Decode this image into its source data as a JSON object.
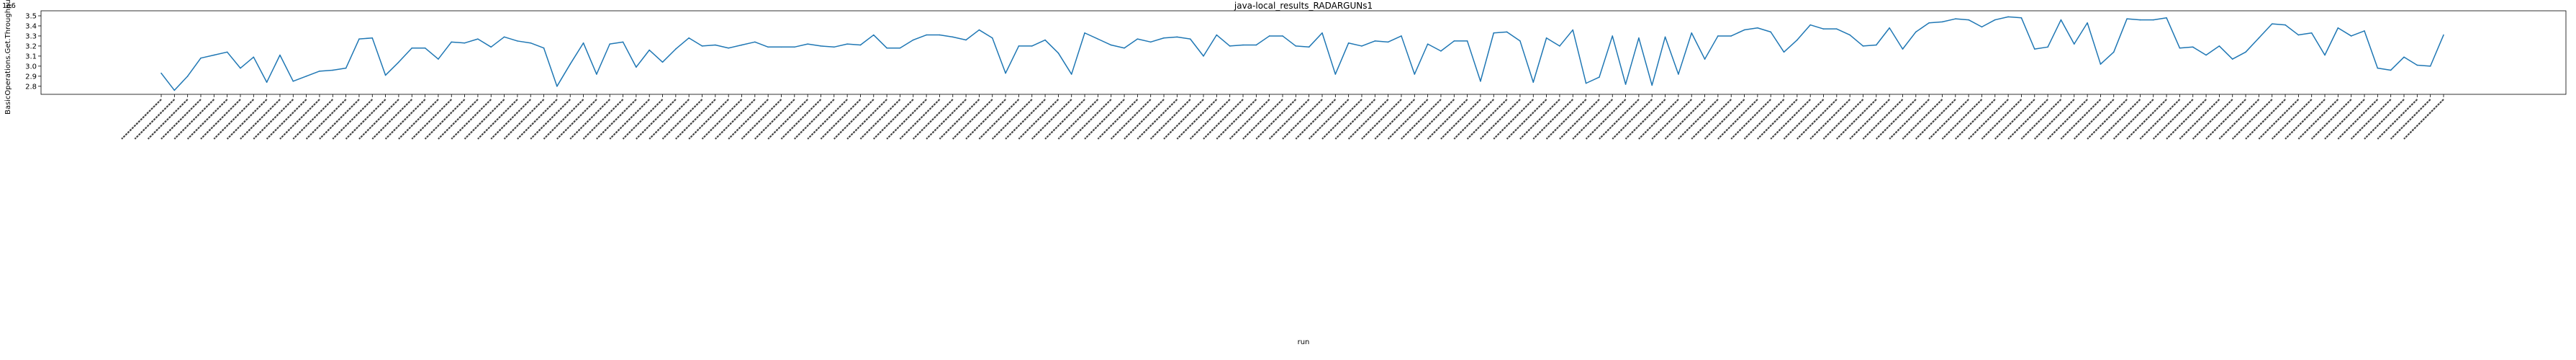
{
  "chart_data": {
    "type": "line",
    "title": "java-local_results_RADARGUNs1",
    "xlabel": "run",
    "ylabel": "BasicOperations.Get.Throughput=",
    "y_multiplier": "1e6",
    "ylim": [
      2.72,
      3.55
    ],
    "yticks": [
      2.8,
      2.9,
      3.0,
      3.1,
      3.2,
      3.3,
      3.4,
      3.5
    ],
    "ytick_labels": [
      "2.8",
      "2.9",
      "3.0",
      "3.1",
      "3.2",
      "3.3",
      "3.4",
      "3.5"
    ],
    "line_color": "#1f77b4",
    "grid": false,
    "x_run_labels_note": "x tick labels are run identifiers (one per data point); text too small to transcribe",
    "series": [
      {
        "values": [
          2.93,
          2.76,
          2.9,
          3.08,
          3.11,
          3.14,
          2.98,
          3.09,
          2.84,
          3.11,
          2.85,
          2.9,
          2.95,
          2.96,
          2.98,
          3.27,
          3.28,
          2.91,
          3.04,
          3.18,
          3.18,
          3.07,
          3.24,
          3.23,
          3.27,
          3.19,
          3.29,
          3.25,
          3.23,
          3.18,
          2.8,
          3.02,
          3.23,
          2.92,
          3.22,
          3.24,
          2.99,
          3.16,
          3.04,
          3.17,
          3.28,
          3.2,
          3.21,
          3.18,
          3.21,
          3.24,
          3.19,
          3.19,
          3.19,
          3.22,
          3.2,
          3.19,
          3.22,
          3.21,
          3.31,
          3.18,
          3.18,
          3.26,
          3.31,
          3.31,
          3.29,
          3.26,
          3.36,
          3.28,
          2.93,
          3.2,
          3.2,
          3.26,
          3.13,
          2.92,
          3.33,
          3.27,
          3.21,
          3.18,
          3.27,
          3.24,
          3.28,
          3.29,
          3.27,
          3.1,
          3.31,
          3.2,
          3.21,
          3.21,
          3.3,
          3.3,
          3.2,
          3.19,
          3.33,
          2.92,
          3.23,
          3.2,
          3.25,
          3.24,
          3.3,
          2.92,
          3.22,
          3.15,
          3.25,
          3.25,
          2.85,
          3.33,
          3.34,
          3.25,
          2.84,
          3.28,
          3.2,
          3.36,
          2.83,
          2.89,
          3.3,
          2.82,
          3.28,
          2.81,
          3.29,
          2.92,
          3.33,
          3.07,
          3.3,
          3.3,
          3.36,
          3.38,
          3.34,
          3.14,
          3.26,
          3.41,
          3.37,
          3.37,
          3.31,
          3.2,
          3.21,
          3.38,
          3.17,
          3.34,
          3.43,
          3.44,
          3.47,
          3.46,
          3.39,
          3.46,
          3.49,
          3.48,
          3.17,
          3.19,
          3.46,
          3.22,
          3.43,
          3.02,
          3.14,
          3.47,
          3.46,
          3.46,
          3.48,
          3.18,
          3.19,
          3.11,
          3.2,
          3.07,
          3.14,
          3.28,
          3.42,
          3.41,
          3.31,
          3.33,
          3.11,
          3.38,
          3.3,
          3.35,
          2.98,
          2.96,
          3.09,
          3.01,
          3.0,
          3.31
        ]
      }
    ]
  }
}
